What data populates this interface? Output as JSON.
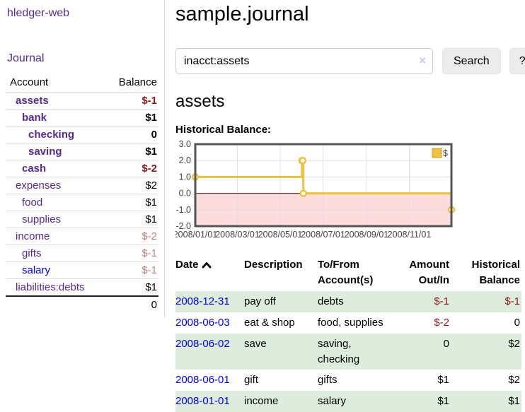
{
  "sidebar": {
    "brand": "hledger-web",
    "journal_label": "Journal",
    "accounts_header": {
      "account": "Account",
      "balance": "Balance"
    },
    "accounts": [
      {
        "name": "assets",
        "depth": 1,
        "bold": true,
        "link_color": "purple",
        "balance": "$-1",
        "balance_style": "neg-b"
      },
      {
        "name": "bank",
        "depth": 2,
        "bold": true,
        "link_color": "purple",
        "balance": "$1",
        "balance_style": "pos-b"
      },
      {
        "name": "checking",
        "depth": 3,
        "bold": true,
        "link_color": "purple",
        "balance": "0",
        "balance_style": "pos-b"
      },
      {
        "name": "saving",
        "depth": 3,
        "bold": true,
        "link_color": "purple",
        "balance": "$1",
        "balance_style": "pos-b"
      },
      {
        "name": "cash",
        "depth": 2,
        "bold": true,
        "link_color": "purple",
        "balance": "$-2",
        "balance_style": "neg-b"
      },
      {
        "name": "expenses",
        "depth": 1,
        "bold": false,
        "link_color": "purple",
        "balance": "$2",
        "balance_style": "pos"
      },
      {
        "name": "food",
        "depth": 2,
        "bold": false,
        "link_color": "purple",
        "balance": "$1",
        "balance_style": "pos"
      },
      {
        "name": "supplies",
        "depth": 2,
        "bold": false,
        "link_color": "purple",
        "balance": "$1",
        "balance_style": "pos"
      },
      {
        "name": "income",
        "depth": 1,
        "bold": false,
        "link_color": "purple",
        "balance": "$-2",
        "balance_style": "neg-l"
      },
      {
        "name": "gifts",
        "depth": 2,
        "bold": false,
        "link_color": "purple",
        "balance": "$-1",
        "balance_style": "neg-l"
      },
      {
        "name": "salary",
        "depth": 2,
        "bold": false,
        "link_color": "blue",
        "balance": "$-1",
        "balance_style": "neg-l"
      },
      {
        "name": "liabilities:debts",
        "depth": 1,
        "bold": false,
        "link_color": "purple",
        "balance": "$1",
        "balance_style": "pos"
      }
    ],
    "total": "0"
  },
  "header": {
    "title": "sample.journal"
  },
  "search": {
    "value": "inacct:assets",
    "clear_icon": "×",
    "button_label": "Search",
    "help_label": "?"
  },
  "main": {
    "account_heading": "assets",
    "chart_label": "Historical Balance:"
  },
  "chart_data": {
    "type": "line",
    "title": "Historical Balance",
    "step": true,
    "series": [
      {
        "name": "$",
        "points": [
          [
            "2008-01-01",
            1
          ],
          [
            "2008-06-01",
            2
          ],
          [
            "2008-06-02",
            2
          ],
          [
            "2008-06-03",
            0
          ],
          [
            "2008-12-31",
            -1
          ]
        ]
      }
    ],
    "x_range": [
      "2008-01-01",
      "2008-12-31"
    ],
    "y_range": [
      -2,
      3
    ],
    "x_ticks": [
      "2008/01/01",
      "2008/03/01",
      "2008/05/01",
      "2008/07/01",
      "2008/09/01",
      "2008/11/01"
    ],
    "y_ticks": [
      3.0,
      2.0,
      1.0,
      0.0,
      -1.0,
      -2.0
    ],
    "legend": {
      "label": "$",
      "color": "#EDC240",
      "position": "top-right"
    },
    "line_color": "#EDC240",
    "marker_fill": "#ffffff",
    "grid_color": "#e0e0e0",
    "border_color": "#545454",
    "negative_region_color": "#fcdcdc",
    "zero_line_color": "#8b0000"
  },
  "transactions": {
    "columns": [
      {
        "label": "Date",
        "sort": "ascending"
      },
      {
        "label": "Description"
      },
      {
        "label": "To/From Account(s)"
      },
      {
        "label": "Amount Out/In",
        "align": "right"
      },
      {
        "label": "Historical Balance",
        "align": "right"
      }
    ],
    "rows": [
      {
        "date": "2008-12-31",
        "description": "pay off",
        "accounts": "debts",
        "amount": "$-1",
        "amount_neg": true,
        "balance": "$-1",
        "balance_neg": true
      },
      {
        "date": "2008-06-03",
        "description": "eat & shop",
        "accounts": "food, supplies",
        "amount": "$-2",
        "amount_neg": true,
        "balance": "0",
        "balance_neg": false
      },
      {
        "date": "2008-06-02",
        "description": "save",
        "accounts": "saving, checking",
        "amount": "0",
        "amount_neg": false,
        "balance": "$2",
        "balance_neg": false
      },
      {
        "date": "2008-06-01",
        "description": "gift",
        "accounts": "gifts",
        "amount": "$1",
        "amount_neg": false,
        "balance": "$2",
        "balance_neg": false
      },
      {
        "date": "2008-01-01",
        "description": "income",
        "accounts": "salary",
        "amount": "$1",
        "amount_neg": false,
        "balance": "$1",
        "balance_neg": false
      }
    ]
  },
  "colors": {
    "purple_link": "#552a93",
    "blue_link": "#0000e8",
    "negative_strong": "#8b1a1a",
    "negative_light": "#c08080",
    "row_stripe_green": "#ddecdd",
    "button_bg": "#ececec",
    "divider": "#dddddd",
    "chart_line_yellow": "#EDC240"
  }
}
